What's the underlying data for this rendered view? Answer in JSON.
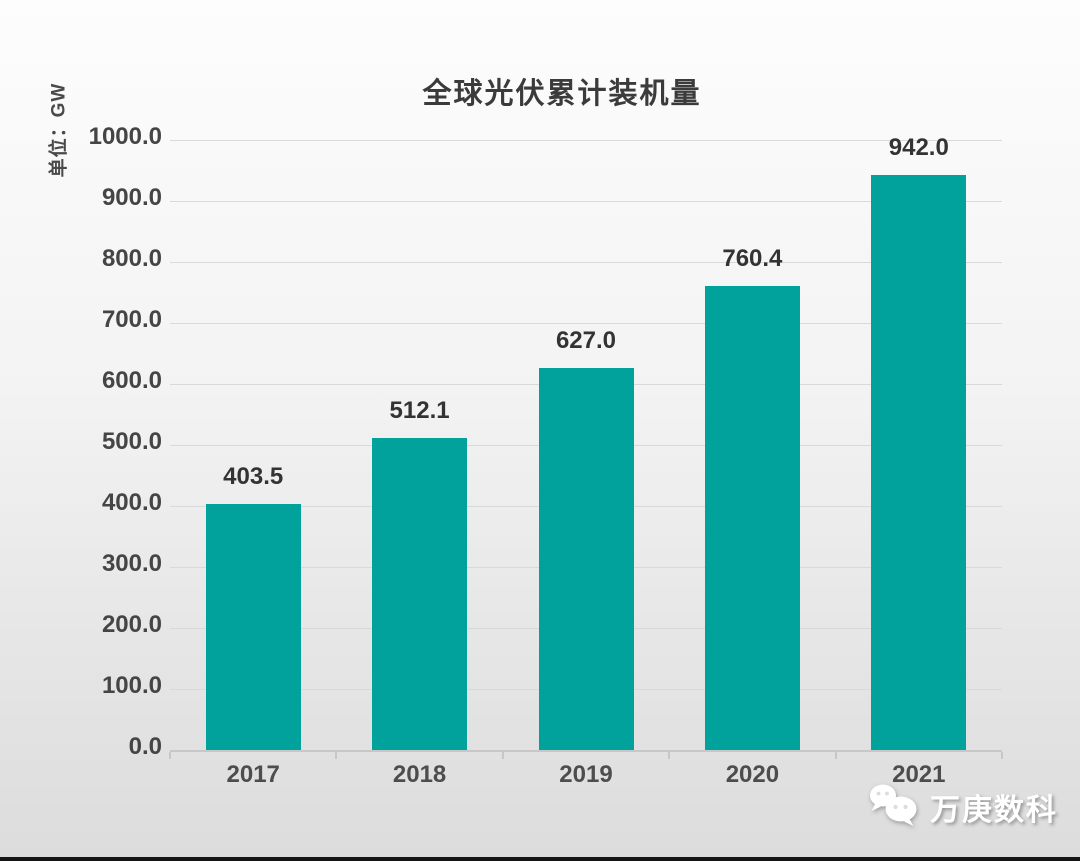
{
  "chart_data": {
    "type": "bar",
    "title": "全球光伏累计装机量",
    "unit_label": "单位：GW",
    "categories": [
      "2017",
      "2018",
      "2019",
      "2020",
      "2021"
    ],
    "values": [
      403.5,
      512.1,
      627.0,
      760.4,
      942.0
    ],
    "value_labels": [
      "403.5",
      "512.1",
      "627.0",
      "760.4",
      "942.0"
    ],
    "xlabel": "",
    "ylabel": "单位：GW",
    "ylim": [
      0,
      1000
    ],
    "ytick_values": [
      0,
      100,
      200,
      300,
      400,
      500,
      600,
      700,
      800,
      900,
      1000
    ],
    "ytick_labels": [
      "0.0",
      "100.0",
      "200.0",
      "300.0",
      "400.0",
      "500.0",
      "600.0",
      "700.0",
      "800.0",
      "900.0",
      "1000.0"
    ],
    "grid": true,
    "legend": "none",
    "bar_color": "#00a29b"
  },
  "colors": {
    "bar": "#00a29b",
    "title_text": "#3b3b3b",
    "tick_text": "#454545",
    "grid_line": "#d9d9d9",
    "axis_line": "#c7c7c7",
    "background_top": "#fdfdfd",
    "background_bottom": "#dcdcdc",
    "bottom_bar": "#151515",
    "watermark_text": "#ffffff"
  },
  "watermark": {
    "icon": "wechat-icon",
    "text": "万庚数科"
  }
}
